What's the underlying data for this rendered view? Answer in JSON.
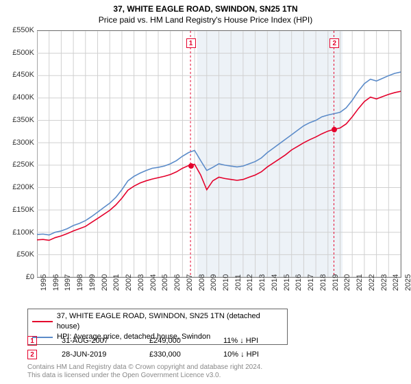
{
  "title_main": "37, WHITE EAGLE ROAD, SWINDON, SN25 1TN",
  "title_sub": "Price paid vs. HM Land Registry's House Price Index (HPI)",
  "chart": {
    "type": "line",
    "background_color": "#ffffff",
    "grid_color": "#d0d0d0",
    "axis_color": "#7a7a7a",
    "ylim": [
      0,
      550000
    ],
    "ytick_step": 50000,
    "y_labels": [
      "£0",
      "£50K",
      "£100K",
      "£150K",
      "£200K",
      "£250K",
      "£300K",
      "£350K",
      "£400K",
      "£450K",
      "£500K",
      "£550K"
    ],
    "xlim": [
      1995,
      2025
    ],
    "x_years": [
      1995,
      1996,
      1997,
      1998,
      1999,
      2000,
      2001,
      2002,
      2003,
      2004,
      2005,
      2006,
      2007,
      2008,
      2009,
      2010,
      2011,
      2012,
      2013,
      2014,
      2015,
      2016,
      2017,
      2018,
      2019,
      2020,
      2021,
      2022,
      2023,
      2024,
      2025
    ],
    "shaded_band": {
      "x_start": 2008.2,
      "x_end": 2020.2,
      "color": "#edf2f7"
    },
    "series": [
      {
        "name": "hpi",
        "label": "HPI: Average price, detached house, Swindon",
        "color": "#5b8bc9",
        "line_width": 1.6,
        "points": [
          [
            1995,
            95000
          ],
          [
            1995.5,
            96000
          ],
          [
            1996,
            94000
          ],
          [
            1996.5,
            100000
          ],
          [
            1997,
            103000
          ],
          [
            1997.5,
            108000
          ],
          [
            1998,
            115000
          ],
          [
            1998.5,
            120000
          ],
          [
            1999,
            126000
          ],
          [
            1999.5,
            135000
          ],
          [
            2000,
            145000
          ],
          [
            2000.5,
            155000
          ],
          [
            2001,
            165000
          ],
          [
            2001.5,
            178000
          ],
          [
            2002,
            195000
          ],
          [
            2002.5,
            215000
          ],
          [
            2003,
            225000
          ],
          [
            2003.5,
            232000
          ],
          [
            2004,
            238000
          ],
          [
            2004.5,
            243000
          ],
          [
            2005,
            245000
          ],
          [
            2005.5,
            248000
          ],
          [
            2006,
            253000
          ],
          [
            2006.5,
            260000
          ],
          [
            2007,
            270000
          ],
          [
            2007.5,
            278000
          ],
          [
            2008,
            283000
          ],
          [
            2008.5,
            260000
          ],
          [
            2009,
            238000
          ],
          [
            2009.5,
            245000
          ],
          [
            2010,
            253000
          ],
          [
            2010.5,
            250000
          ],
          [
            2011,
            248000
          ],
          [
            2011.5,
            246000
          ],
          [
            2012,
            248000
          ],
          [
            2012.5,
            253000
          ],
          [
            2013,
            258000
          ],
          [
            2013.5,
            266000
          ],
          [
            2014,
            278000
          ],
          [
            2014.5,
            288000
          ],
          [
            2015,
            298000
          ],
          [
            2015.5,
            308000
          ],
          [
            2016,
            318000
          ],
          [
            2016.5,
            328000
          ],
          [
            2017,
            338000
          ],
          [
            2017.5,
            345000
          ],
          [
            2018,
            350000
          ],
          [
            2018.5,
            358000
          ],
          [
            2019,
            362000
          ],
          [
            2019.5,
            365000
          ],
          [
            2020,
            368000
          ],
          [
            2020.5,
            378000
          ],
          [
            2021,
            395000
          ],
          [
            2021.5,
            415000
          ],
          [
            2022,
            432000
          ],
          [
            2022.5,
            442000
          ],
          [
            2023,
            438000
          ],
          [
            2023.5,
            444000
          ],
          [
            2024,
            450000
          ],
          [
            2024.5,
            455000
          ],
          [
            2025,
            458000
          ]
        ]
      },
      {
        "name": "price_paid",
        "label": "37, WHITE EAGLE ROAD, SWINDON, SN25 1TN (detached house)",
        "color": "#e4002b",
        "line_width": 1.6,
        "points": [
          [
            1995,
            83000
          ],
          [
            1995.5,
            84000
          ],
          [
            1996,
            82000
          ],
          [
            1996.5,
            88000
          ],
          [
            1997,
            92000
          ],
          [
            1997.5,
            97000
          ],
          [
            1998,
            103000
          ],
          [
            1998.5,
            108000
          ],
          [
            1999,
            113000
          ],
          [
            1999.5,
            122000
          ],
          [
            2000,
            131000
          ],
          [
            2000.5,
            140000
          ],
          [
            2001,
            149000
          ],
          [
            2001.5,
            161000
          ],
          [
            2002,
            176000
          ],
          [
            2002.5,
            194000
          ],
          [
            2003,
            203000
          ],
          [
            2003.5,
            210000
          ],
          [
            2004,
            215000
          ],
          [
            2004.5,
            219000
          ],
          [
            2005,
            222000
          ],
          [
            2005.5,
            225000
          ],
          [
            2006,
            229000
          ],
          [
            2006.5,
            235000
          ],
          [
            2007,
            243000
          ],
          [
            2007.5,
            249000
          ],
          [
            2008,
            252000
          ],
          [
            2008.5,
            228000
          ],
          [
            2009,
            195000
          ],
          [
            2009.5,
            215000
          ],
          [
            2010,
            223000
          ],
          [
            2010.5,
            220000
          ],
          [
            2011,
            218000
          ],
          [
            2011.5,
            216000
          ],
          [
            2012,
            218000
          ],
          [
            2012.5,
            223000
          ],
          [
            2013,
            228000
          ],
          [
            2013.5,
            235000
          ],
          [
            2014,
            246000
          ],
          [
            2014.5,
            255000
          ],
          [
            2015,
            264000
          ],
          [
            2015.5,
            273000
          ],
          [
            2016,
            284000
          ],
          [
            2016.5,
            292000
          ],
          [
            2017,
            300000
          ],
          [
            2017.5,
            307000
          ],
          [
            2018,
            313000
          ],
          [
            2018.5,
            320000
          ],
          [
            2019,
            326000
          ],
          [
            2019.5,
            330000
          ],
          [
            2020,
            333000
          ],
          [
            2020.5,
            342000
          ],
          [
            2021,
            358000
          ],
          [
            2021.5,
            376000
          ],
          [
            2022,
            392000
          ],
          [
            2022.5,
            402000
          ],
          [
            2023,
            398000
          ],
          [
            2023.5,
            403000
          ],
          [
            2024,
            408000
          ],
          [
            2024.5,
            412000
          ],
          [
            2025,
            415000
          ]
        ]
      }
    ],
    "markers": [
      {
        "id": "1",
        "x": 2007.66,
        "price": 249000,
        "line_color": "#e4002b",
        "badge_color": "#e4002b",
        "dot_color": "#e4002b"
      },
      {
        "id": "2",
        "x": 2019.49,
        "price": 330000,
        "line_color": "#e4002b",
        "badge_color": "#e4002b",
        "dot_color": "#e4002b"
      }
    ]
  },
  "legend": {
    "items": [
      {
        "color": "#e4002b",
        "label": "37, WHITE EAGLE ROAD, SWINDON, SN25 1TN (detached house)"
      },
      {
        "color": "#5b8bc9",
        "label": "HPI: Average price, detached house, Swindon"
      }
    ]
  },
  "sales": [
    {
      "badge": "1",
      "badge_color": "#e4002b",
      "date": "31-AUG-2007",
      "price": "£249,000",
      "delta": "11% ↓ HPI"
    },
    {
      "badge": "2",
      "badge_color": "#e4002b",
      "date": "28-JUN-2019",
      "price": "£330,000",
      "delta": "10% ↓ HPI"
    }
  ],
  "footer": {
    "line1": "Contains HM Land Registry data © Crown copyright and database right 2024.",
    "line2": "This data is licensed under the Open Government Licence v3.0."
  }
}
